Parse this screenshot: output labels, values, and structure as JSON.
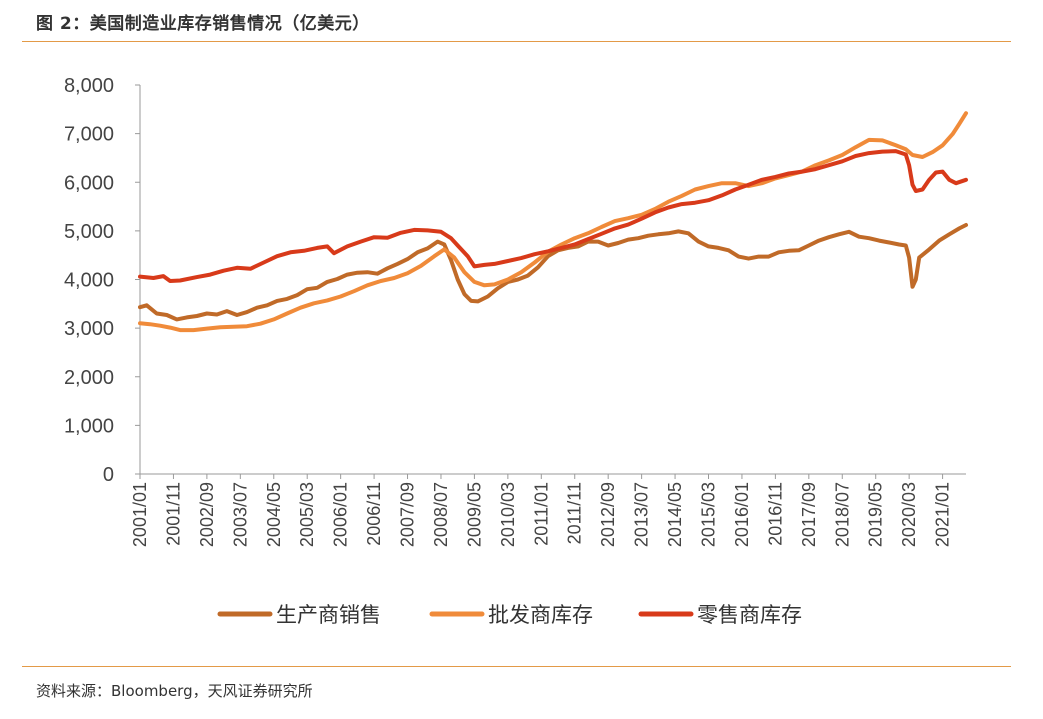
{
  "figure": {
    "title": "图 2：美国制造业库存销售情况（亿美元）",
    "source": "资料来源：Bloomberg，天风证券研究所"
  },
  "colors": {
    "rule": "#e39a47",
    "manufacturer_sales": "#c06a28",
    "wholesale_inventory": "#f08b3a",
    "retail_inventory": "#d83a1a"
  },
  "chart_data": {
    "type": "line",
    "title": "",
    "xlabel": "",
    "ylabel": "",
    "ylim": [
      0,
      8000
    ],
    "y_ticks": [
      "0",
      "1,000",
      "2,000",
      "3,000",
      "4,000",
      "5,000",
      "6,000",
      "7,000",
      "8,000"
    ],
    "x_range": [
      "2001/01",
      "2021/08"
    ],
    "x_ticks": [
      "2001/01",
      "2001/11",
      "2002/09",
      "2003/07",
      "2004/05",
      "2005/03",
      "2006/01",
      "2006/11",
      "2007/09",
      "2008/07",
      "2009/05",
      "2010/03",
      "2011/01",
      "2011/11",
      "2012/09",
      "2013/07",
      "2014/05",
      "2015/03",
      "2016/01",
      "2016/11",
      "2017/09",
      "2018/07",
      "2019/05",
      "2020/03",
      "2021/01"
    ],
    "legend_position": "bottom",
    "grid": false,
    "series": [
      {
        "name": "生产商销售",
        "color": "#c06a28",
        "points": [
          [
            "2001/01",
            3430
          ],
          [
            "2001/03",
            3470
          ],
          [
            "2001/06",
            3300
          ],
          [
            "2001/09",
            3270
          ],
          [
            "2001/12",
            3180
          ],
          [
            "2002/03",
            3220
          ],
          [
            "2002/06",
            3250
          ],
          [
            "2002/09",
            3300
          ],
          [
            "2002/12",
            3280
          ],
          [
            "2003/03",
            3350
          ],
          [
            "2003/06",
            3270
          ],
          [
            "2003/09",
            3330
          ],
          [
            "2003/12",
            3420
          ],
          [
            "2004/03",
            3470
          ],
          [
            "2004/06",
            3560
          ],
          [
            "2004/09",
            3600
          ],
          [
            "2004/12",
            3680
          ],
          [
            "2005/03",
            3800
          ],
          [
            "2005/06",
            3830
          ],
          [
            "2005/09",
            3950
          ],
          [
            "2005/12",
            4010
          ],
          [
            "2006/03",
            4100
          ],
          [
            "2006/06",
            4140
          ],
          [
            "2006/09",
            4150
          ],
          [
            "2006/12",
            4120
          ],
          [
            "2007/03",
            4230
          ],
          [
            "2007/06",
            4320
          ],
          [
            "2007/09",
            4420
          ],
          [
            "2007/12",
            4560
          ],
          [
            "2008/03",
            4640
          ],
          [
            "2008/06",
            4780
          ],
          [
            "2008/08",
            4720
          ],
          [
            "2008/10",
            4400
          ],
          [
            "2008/12",
            4000
          ],
          [
            "2009/02",
            3700
          ],
          [
            "2009/04",
            3560
          ],
          [
            "2009/06",
            3550
          ],
          [
            "2009/09",
            3650
          ],
          [
            "2009/12",
            3820
          ],
          [
            "2010/03",
            3950
          ],
          [
            "2010/06",
            4000
          ],
          [
            "2010/09",
            4080
          ],
          [
            "2010/12",
            4250
          ],
          [
            "2011/03",
            4480
          ],
          [
            "2011/06",
            4600
          ],
          [
            "2011/09",
            4650
          ],
          [
            "2011/12",
            4680
          ],
          [
            "2012/03",
            4780
          ],
          [
            "2012/06",
            4780
          ],
          [
            "2012/09",
            4700
          ],
          [
            "2012/12",
            4750
          ],
          [
            "2013/03",
            4820
          ],
          [
            "2013/06",
            4850
          ],
          [
            "2013/09",
            4900
          ],
          [
            "2013/12",
            4930
          ],
          [
            "2014/03",
            4950
          ],
          [
            "2014/06",
            4990
          ],
          [
            "2014/09",
            4950
          ],
          [
            "2014/12",
            4780
          ],
          [
            "2015/03",
            4680
          ],
          [
            "2015/06",
            4650
          ],
          [
            "2015/09",
            4600
          ],
          [
            "2015/12",
            4470
          ],
          [
            "2016/03",
            4430
          ],
          [
            "2016/06",
            4470
          ],
          [
            "2016/09",
            4470
          ],
          [
            "2016/12",
            4560
          ],
          [
            "2017/03",
            4590
          ],
          [
            "2017/06",
            4600
          ],
          [
            "2017/09",
            4700
          ],
          [
            "2017/12",
            4800
          ],
          [
            "2018/03",
            4870
          ],
          [
            "2018/06",
            4930
          ],
          [
            "2018/09",
            4980
          ],
          [
            "2018/12",
            4880
          ],
          [
            "2019/03",
            4850
          ],
          [
            "2019/06",
            4800
          ],
          [
            "2019/09",
            4760
          ],
          [
            "2019/12",
            4720
          ],
          [
            "2020/02",
            4700
          ],
          [
            "2020/03",
            4450
          ],
          [
            "2020/04",
            3850
          ],
          [
            "2020/05",
            4000
          ],
          [
            "2020/06",
            4450
          ],
          [
            "2020/09",
            4620
          ],
          [
            "2020/12",
            4800
          ],
          [
            "2021/03",
            4930
          ],
          [
            "2021/06",
            5050
          ],
          [
            "2021/08",
            5120
          ]
        ]
      },
      {
        "name": "批发商库存",
        "color": "#f08b3a",
        "points": [
          [
            "2001/01",
            3100
          ],
          [
            "2001/04",
            3080
          ],
          [
            "2001/07",
            3050
          ],
          [
            "2001/10",
            3010
          ],
          [
            "2002/01",
            2960
          ],
          [
            "2002/05",
            2960
          ],
          [
            "2002/09",
            2990
          ],
          [
            "2003/01",
            3020
          ],
          [
            "2003/05",
            3030
          ],
          [
            "2003/09",
            3040
          ],
          [
            "2004/01",
            3090
          ],
          [
            "2004/05",
            3180
          ],
          [
            "2004/09",
            3300
          ],
          [
            "2005/01",
            3420
          ],
          [
            "2005/05",
            3510
          ],
          [
            "2005/09",
            3570
          ],
          [
            "2006/01",
            3650
          ],
          [
            "2006/05",
            3760
          ],
          [
            "2006/09",
            3880
          ],
          [
            "2007/01",
            3970
          ],
          [
            "2007/05",
            4030
          ],
          [
            "2007/09",
            4130
          ],
          [
            "2008/01",
            4280
          ],
          [
            "2008/05",
            4480
          ],
          [
            "2008/08",
            4620
          ],
          [
            "2008/11",
            4450
          ],
          [
            "2009/02",
            4150
          ],
          [
            "2009/05",
            3950
          ],
          [
            "2009/08",
            3880
          ],
          [
            "2009/11",
            3900
          ],
          [
            "2010/03",
            4000
          ],
          [
            "2010/07",
            4150
          ],
          [
            "2010/11",
            4350
          ],
          [
            "2011/03",
            4570
          ],
          [
            "2011/07",
            4720
          ],
          [
            "2011/11",
            4850
          ],
          [
            "2012/03",
            4950
          ],
          [
            "2012/07",
            5080
          ],
          [
            "2012/11",
            5200
          ],
          [
            "2013/03",
            5260
          ],
          [
            "2013/07",
            5330
          ],
          [
            "2013/11",
            5450
          ],
          [
            "2014/03",
            5600
          ],
          [
            "2014/07",
            5720
          ],
          [
            "2014/11",
            5850
          ],
          [
            "2015/03",
            5920
          ],
          [
            "2015/07",
            5980
          ],
          [
            "2015/11",
            5980
          ],
          [
            "2016/03",
            5920
          ],
          [
            "2016/07",
            5980
          ],
          [
            "2016/11",
            6080
          ],
          [
            "2017/03",
            6150
          ],
          [
            "2017/07",
            6220
          ],
          [
            "2017/11",
            6350
          ],
          [
            "2018/03",
            6450
          ],
          [
            "2018/07",
            6560
          ],
          [
            "2018/11",
            6720
          ],
          [
            "2019/03",
            6870
          ],
          [
            "2019/07",
            6860
          ],
          [
            "2019/11",
            6760
          ],
          [
            "2020/02",
            6680
          ],
          [
            "2020/04",
            6560
          ],
          [
            "2020/07",
            6520
          ],
          [
            "2020/10",
            6620
          ],
          [
            "2021/01",
            6760
          ],
          [
            "2021/04",
            6990
          ],
          [
            "2021/06",
            7200
          ],
          [
            "2021/08",
            7420
          ]
        ]
      },
      {
        "name": "零售商库存",
        "color": "#d83a1a",
        "points": [
          [
            "2001/01",
            4060
          ],
          [
            "2001/05",
            4030
          ],
          [
            "2001/08",
            4070
          ],
          [
            "2001/10",
            3970
          ],
          [
            "2002/01",
            3980
          ],
          [
            "2002/06",
            4050
          ],
          [
            "2002/10",
            4100
          ],
          [
            "2003/02",
            4180
          ],
          [
            "2003/06",
            4240
          ],
          [
            "2003/10",
            4220
          ],
          [
            "2004/02",
            4350
          ],
          [
            "2004/06",
            4480
          ],
          [
            "2004/10",
            4560
          ],
          [
            "2005/02",
            4590
          ],
          [
            "2005/06",
            4650
          ],
          [
            "2005/09",
            4680
          ],
          [
            "2005/11",
            4540
          ],
          [
            "2006/03",
            4680
          ],
          [
            "2006/07",
            4780
          ],
          [
            "2006/11",
            4870
          ],
          [
            "2007/03",
            4860
          ],
          [
            "2007/07",
            4960
          ],
          [
            "2007/11",
            5020
          ],
          [
            "2008/03",
            5010
          ],
          [
            "2008/07",
            4980
          ],
          [
            "2008/10",
            4850
          ],
          [
            "2008/12",
            4700
          ],
          [
            "2009/03",
            4480
          ],
          [
            "2009/05",
            4270
          ],
          [
            "2009/08",
            4300
          ],
          [
            "2009/11",
            4320
          ],
          [
            "2010/03",
            4380
          ],
          [
            "2010/07",
            4440
          ],
          [
            "2010/11",
            4520
          ],
          [
            "2011/03",
            4580
          ],
          [
            "2011/07",
            4650
          ],
          [
            "2011/11",
            4720
          ],
          [
            "2012/03",
            4830
          ],
          [
            "2012/07",
            4940
          ],
          [
            "2012/11",
            5050
          ],
          [
            "2013/03",
            5130
          ],
          [
            "2013/07",
            5250
          ],
          [
            "2013/11",
            5380
          ],
          [
            "2014/03",
            5480
          ],
          [
            "2014/07",
            5550
          ],
          [
            "2014/11",
            5580
          ],
          [
            "2015/03",
            5630
          ],
          [
            "2015/07",
            5730
          ],
          [
            "2015/11",
            5850
          ],
          [
            "2016/03",
            5950
          ],
          [
            "2016/07",
            6050
          ],
          [
            "2016/11",
            6110
          ],
          [
            "2017/03",
            6180
          ],
          [
            "2017/07",
            6220
          ],
          [
            "2017/11",
            6270
          ],
          [
            "2018/03",
            6350
          ],
          [
            "2018/07",
            6430
          ],
          [
            "2018/11",
            6540
          ],
          [
            "2019/03",
            6600
          ],
          [
            "2019/07",
            6630
          ],
          [
            "2019/11",
            6640
          ],
          [
            "2020/02",
            6570
          ],
          [
            "2020/03",
            6350
          ],
          [
            "2020/04",
            5950
          ],
          [
            "2020/05",
            5820
          ],
          [
            "2020/07",
            5850
          ],
          [
            "2020/09",
            6050
          ],
          [
            "2020/11",
            6200
          ],
          [
            "2021/01",
            6220
          ],
          [
            "2021/03",
            6050
          ],
          [
            "2021/05",
            5980
          ],
          [
            "2021/08",
            6050
          ]
        ]
      }
    ]
  }
}
